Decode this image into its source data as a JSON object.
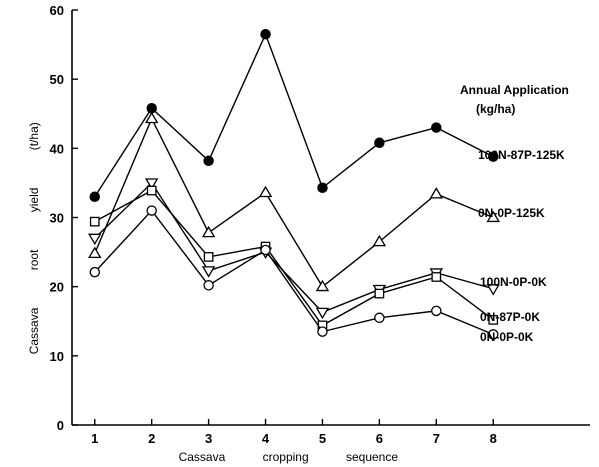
{
  "chart_data": {
    "type": "line",
    "xlabel": "Cassava cropping sequence",
    "ylabel": "Cassava root yield (t/ha)",
    "xlim": [
      0.6,
      9.7
    ],
    "ylim": [
      0,
      60
    ],
    "x": [
      1,
      2,
      3,
      4,
      5,
      6,
      7,
      8
    ],
    "x_ticks": [
      "1",
      "2",
      "3",
      "4",
      "5",
      "6",
      "7",
      "8"
    ],
    "y_ticks": [
      "0",
      "10",
      "20",
      "30",
      "40",
      "50",
      "60"
    ],
    "legend_title": [
      "Annual Application",
      "(kg/ha)"
    ],
    "series": [
      {
        "name": "100N-87P-125K",
        "marker": "filled-circle",
        "values": [
          33.0,
          45.8,
          38.2,
          56.5,
          34.3,
          40.8,
          43.0,
          38.8
        ]
      },
      {
        "name": "0N-0P-125K",
        "marker": "triangle-up",
        "values": [
          24.8,
          44.3,
          27.8,
          33.6,
          20.0,
          26.5,
          33.4,
          30.0
        ]
      },
      {
        "name": "100N-0P-0K",
        "marker": "triangle-down",
        "values": [
          27.0,
          35.0,
          22.3,
          25.0,
          16.3,
          19.6,
          22.0,
          19.7
        ]
      },
      {
        "name": "0N-87P-0K",
        "marker": "square",
        "values": [
          29.4,
          33.9,
          24.3,
          25.8,
          14.4,
          19.0,
          21.4,
          15.2
        ]
      },
      {
        "name": "0N-0P-0K",
        "marker": "circle",
        "values": [
          22.1,
          31.0,
          20.2,
          25.3,
          13.5,
          15.5,
          16.5,
          13.1
        ]
      }
    ]
  }
}
